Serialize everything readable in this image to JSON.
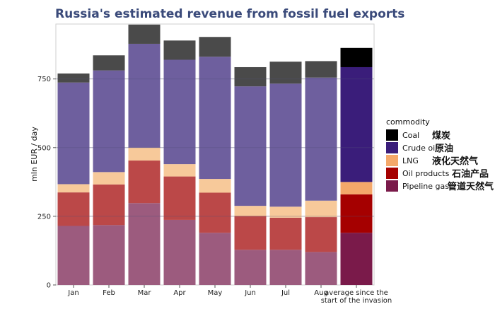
{
  "chart_data": {
    "type": "bar",
    "stacked": true,
    "title": "Russia's estimated revenue from fossil fuel exports",
    "xlabel": "",
    "ylabel": "mln EUR / day",
    "ylim": [
      0,
      950
    ],
    "yticks": [
      0,
      250,
      500,
      750
    ],
    "categories": [
      "Jan",
      "Feb",
      "Mar",
      "Apr",
      "May",
      "Jun",
      "Jul",
      "Aug",
      "average since the start of the invasion"
    ],
    "category_lines": [
      [
        "Jan"
      ],
      [
        "Feb"
      ],
      [
        "Mar"
      ],
      [
        "Apr"
      ],
      [
        "May"
      ],
      [
        "Jun"
      ],
      [
        "Jul"
      ],
      [
        "Aug"
      ],
      [
        "average since the",
        "start of the invasion"
      ]
    ],
    "highlight_index": 8,
    "legend_title": "commodity",
    "legend_position": "right",
    "series": [
      {
        "name": "Pipeline gas",
        "name_cn": "管道天然气",
        "color": "#7a1a4a",
        "muted_color": "#9c5b7e",
        "values": [
          215,
          218,
          298,
          237,
          190,
          128,
          128,
          120,
          190
        ]
      },
      {
        "name": "Oil products",
        "name_cn": "石油产品",
        "color": "#a50000",
        "muted_color": "#bb4848",
        "values": [
          122,
          148,
          155,
          158,
          146,
          123,
          117,
          127,
          140
        ]
      },
      {
        "name": "LNG",
        "name_cn": "液化天然气",
        "color": "#f4a86a",
        "muted_color": "#f7c99a",
        "values": [
          30,
          45,
          47,
          45,
          50,
          37,
          40,
          60,
          45
        ]
      },
      {
        "name": "Crude oil",
        "name_cn": "原油",
        "color": "#3a1d7a",
        "muted_color": "#6e5f9e",
        "values": [
          370,
          370,
          378,
          380,
          445,
          435,
          448,
          448,
          418
        ]
      },
      {
        "name": "Coal",
        "name_cn": "煤炭",
        "color": "#000000",
        "muted_color": "#4a4a4a",
        "values": [
          33,
          55,
          70,
          70,
          72,
          70,
          80,
          60,
          70
        ]
      }
    ]
  }
}
